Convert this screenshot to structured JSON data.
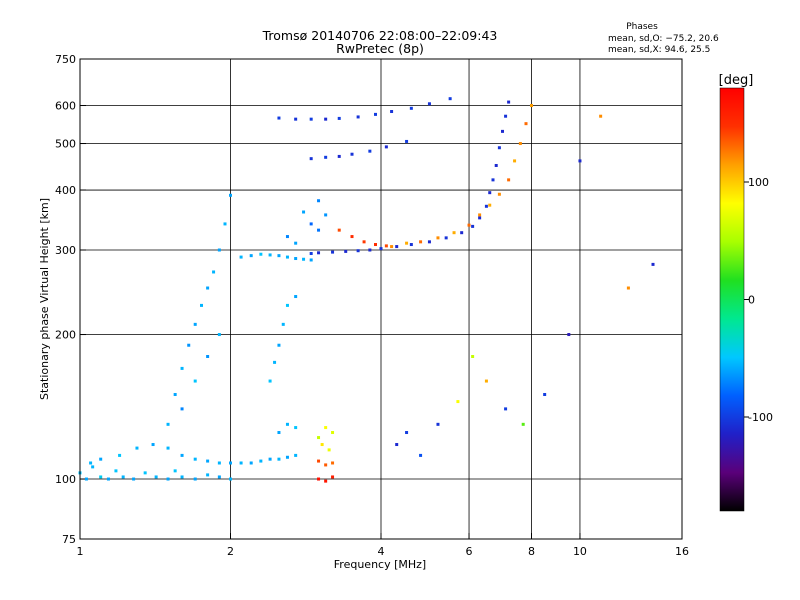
{
  "chart_data": {
    "type": "scatter",
    "title": "Tromsø 20140706 22:08:00–22:09:43",
    "subtitle": "RwPretec (8p)",
    "phase_box": {
      "title": "Phases",
      "line1": "mean, sd,O: −75.2, 20.6",
      "line2": "mean, sd,X:  94.6, 25.5"
    },
    "xlabel": "Frequency [MHz]",
    "ylabel": "Stationary phase Virtual Height [km]",
    "x_scale": "log",
    "y_scale": "log",
    "xlim": [
      1,
      16
    ],
    "ylim": [
      75,
      750
    ],
    "x_ticks": [
      1,
      2,
      4,
      6,
      8,
      10,
      16
    ],
    "y_ticks": [
      75,
      100,
      200,
      300,
      400,
      500,
      600,
      750
    ],
    "grid_x": [
      2,
      4,
      6,
      8,
      10
    ],
    "grid_y": [
      100,
      200,
      300,
      400,
      500,
      600
    ],
    "grid": true,
    "colorbar": {
      "label": "[deg]",
      "ticks": [
        100,
        0,
        -100
      ],
      "range": [
        -180,
        180
      ],
      "colors": [
        "#000000",
        "#5a007a",
        "#2020c8",
        "#0060ff",
        "#00c8ff",
        "#00e890",
        "#20e020",
        "#a8ff00",
        "#ffff00",
        "#ffa000",
        "#ff3000",
        "#ff0000"
      ]
    },
    "series": [
      {
        "points": [
          [
            1.0,
            103,
            -50
          ],
          [
            1.03,
            100,
            -60
          ],
          [
            1.06,
            106,
            -55
          ],
          [
            1.1,
            101,
            -45
          ],
          [
            1.14,
            100,
            -60
          ],
          [
            1.18,
            104,
            -50
          ],
          [
            1.22,
            101,
            -55
          ],
          [
            1.28,
            100,
            -60
          ],
          [
            1.35,
            103,
            -50
          ],
          [
            1.42,
            101,
            -55
          ],
          [
            1.5,
            100,
            -60
          ],
          [
            1.55,
            104,
            -50
          ],
          [
            1.6,
            101,
            -55
          ],
          [
            1.7,
            100,
            -60
          ],
          [
            1.8,
            102,
            -55
          ],
          [
            1.9,
            101,
            -60
          ],
          [
            2.0,
            100,
            -55
          ]
        ]
      },
      {
        "points": [
          [
            1.05,
            108,
            -55
          ],
          [
            1.1,
            110,
            -60
          ],
          [
            1.2,
            112,
            -50
          ],
          [
            1.3,
            116,
            -55
          ],
          [
            1.4,
            118,
            -60
          ],
          [
            1.5,
            116,
            -55
          ],
          [
            1.6,
            112,
            -60
          ],
          [
            1.7,
            110,
            -55
          ],
          [
            1.8,
            109,
            -60
          ],
          [
            1.9,
            108,
            -55
          ],
          [
            2.0,
            108,
            -60
          ],
          [
            2.1,
            108,
            -55
          ],
          [
            2.2,
            108,
            -60
          ],
          [
            2.3,
            109,
            -55
          ],
          [
            2.4,
            110,
            -60
          ],
          [
            2.5,
            110,
            -55
          ],
          [
            2.6,
            111,
            -60
          ],
          [
            2.7,
            112,
            -55
          ]
        ]
      },
      {
        "points": [
          [
            1.5,
            130,
            -55
          ],
          [
            1.55,
            150,
            -60
          ],
          [
            1.6,
            170,
            -55
          ],
          [
            1.65,
            190,
            -65
          ],
          [
            1.7,
            210,
            -60
          ],
          [
            1.75,
            230,
            -55
          ],
          [
            1.8,
            250,
            -60
          ],
          [
            1.85,
            270,
            -55
          ],
          [
            1.9,
            300,
            -60
          ],
          [
            1.95,
            340,
            -55
          ],
          [
            2.0,
            390,
            -60
          ],
          [
            1.6,
            140,
            -70
          ],
          [
            1.7,
            160,
            -50
          ],
          [
            1.8,
            180,
            -65
          ],
          [
            1.9,
            200,
            -55
          ]
        ]
      },
      {
        "points": [
          [
            2.1,
            290,
            -55
          ],
          [
            2.2,
            292,
            -60
          ],
          [
            2.3,
            294,
            -50
          ],
          [
            2.4,
            293,
            -55
          ],
          [
            2.5,
            292,
            -60
          ],
          [
            2.6,
            290,
            -55
          ],
          [
            2.7,
            288,
            -60
          ],
          [
            2.8,
            287,
            -55
          ],
          [
            2.9,
            286,
            -60
          ]
        ]
      },
      {
        "points": [
          [
            2.4,
            160,
            -50
          ],
          [
            2.45,
            175,
            -55
          ],
          [
            2.5,
            190,
            -60
          ],
          [
            2.55,
            210,
            -55
          ],
          [
            2.6,
            230,
            -50
          ],
          [
            2.7,
            240,
            -60
          ],
          [
            2.6,
            130,
            -55
          ],
          [
            2.5,
            125,
            -60
          ],
          [
            2.7,
            128,
            -50
          ]
        ]
      },
      {
        "points": [
          [
            2.9,
            295,
            -100
          ],
          [
            3.0,
            296,
            -110
          ],
          [
            3.2,
            297,
            -105
          ],
          [
            3.4,
            298,
            -110
          ],
          [
            3.6,
            299,
            -105
          ],
          [
            3.8,
            300,
            -110
          ],
          [
            4.0,
            302,
            -105
          ],
          [
            4.3,
            305,
            -110
          ],
          [
            4.6,
            308,
            -105
          ],
          [
            5.0,
            312,
            -110
          ],
          [
            5.4,
            318,
            -105
          ],
          [
            5.8,
            326,
            -110
          ],
          [
            6.1,
            336,
            -105
          ],
          [
            6.3,
            350,
            -110
          ],
          [
            6.5,
            370,
            -105
          ],
          [
            6.6,
            395,
            -110
          ],
          [
            6.7,
            420,
            -105
          ],
          [
            6.8,
            450,
            -110
          ],
          [
            6.9,
            490,
            -105
          ],
          [
            7.0,
            530,
            -110
          ],
          [
            7.1,
            570,
            -105
          ],
          [
            7.2,
            610,
            -110
          ]
        ]
      },
      {
        "points": [
          [
            4.2,
            305,
            120
          ],
          [
            4.5,
            310,
            110
          ],
          [
            4.8,
            312,
            130
          ],
          [
            5.2,
            318,
            120
          ],
          [
            5.6,
            326,
            110
          ],
          [
            6.0,
            338,
            130
          ],
          [
            6.3,
            355,
            120
          ],
          [
            6.6,
            372,
            110
          ],
          [
            6.9,
            392,
            120
          ],
          [
            7.2,
            420,
            130
          ],
          [
            7.4,
            460,
            110
          ],
          [
            7.6,
            500,
            120
          ],
          [
            7.8,
            550,
            130
          ],
          [
            8.0,
            600,
            115
          ]
        ]
      },
      {
        "points": [
          [
            2.5,
            565,
            -100
          ],
          [
            2.7,
            562,
            -105
          ],
          [
            2.9,
            562,
            -100
          ],
          [
            3.1,
            562,
            -110
          ],
          [
            3.3,
            564,
            -100
          ],
          [
            3.6,
            568,
            -105
          ],
          [
            3.9,
            575,
            -100
          ],
          [
            4.2,
            583,
            -105
          ],
          [
            4.6,
            592,
            -100
          ],
          [
            5.0,
            605,
            -105
          ],
          [
            5.5,
            620,
            -100
          ]
        ]
      },
      {
        "points": [
          [
            2.9,
            465,
            -105
          ],
          [
            3.1,
            468,
            -100
          ],
          [
            3.3,
            470,
            -110
          ],
          [
            3.5,
            475,
            -105
          ],
          [
            3.8,
            482,
            -100
          ],
          [
            4.1,
            492,
            -110
          ],
          [
            4.5,
            505,
            -100
          ]
        ]
      },
      {
        "points": [
          [
            3.3,
            330,
            140
          ],
          [
            3.5,
            320,
            150
          ],
          [
            3.7,
            312,
            145
          ],
          [
            3.9,
            308,
            150
          ],
          [
            4.1,
            306,
            140
          ]
        ]
      },
      {
        "points": [
          [
            3.0,
            122,
            60
          ],
          [
            3.1,
            128,
            80
          ],
          [
            3.2,
            125,
            70
          ],
          [
            3.05,
            118,
            90
          ],
          [
            3.15,
            115,
            75
          ],
          [
            3.0,
            109,
            140
          ],
          [
            3.1,
            107,
            135
          ],
          [
            3.2,
            108,
            130
          ],
          [
            3.0,
            100,
            170
          ],
          [
            3.1,
            99,
            165
          ],
          [
            3.2,
            101,
            160
          ]
        ]
      },
      {
        "points": [
          [
            2.8,
            360,
            -60
          ],
          [
            2.9,
            340,
            -80
          ],
          [
            3.0,
            380,
            -70
          ],
          [
            3.1,
            355,
            -65
          ],
          [
            3.0,
            330,
            -75
          ],
          [
            2.7,
            310,
            -60
          ],
          [
            2.6,
            320,
            -70
          ]
        ]
      },
      {
        "points": [
          [
            4.3,
            118,
            -110
          ],
          [
            4.5,
            125,
            -100
          ],
          [
            4.8,
            112,
            -90
          ],
          [
            5.2,
            130,
            -105
          ],
          [
            5.7,
            145,
            80
          ],
          [
            6.1,
            180,
            60
          ],
          [
            6.5,
            160,
            110
          ],
          [
            7.1,
            140,
            -100
          ],
          [
            7.7,
            130,
            30
          ],
          [
            8.5,
            150,
            -100
          ],
          [
            9.5,
            200,
            -120
          ],
          [
            10.0,
            460,
            -110
          ],
          [
            11.0,
            570,
            120
          ],
          [
            12.5,
            250,
            120
          ],
          [
            14.0,
            280,
            -110
          ]
        ]
      }
    ]
  }
}
